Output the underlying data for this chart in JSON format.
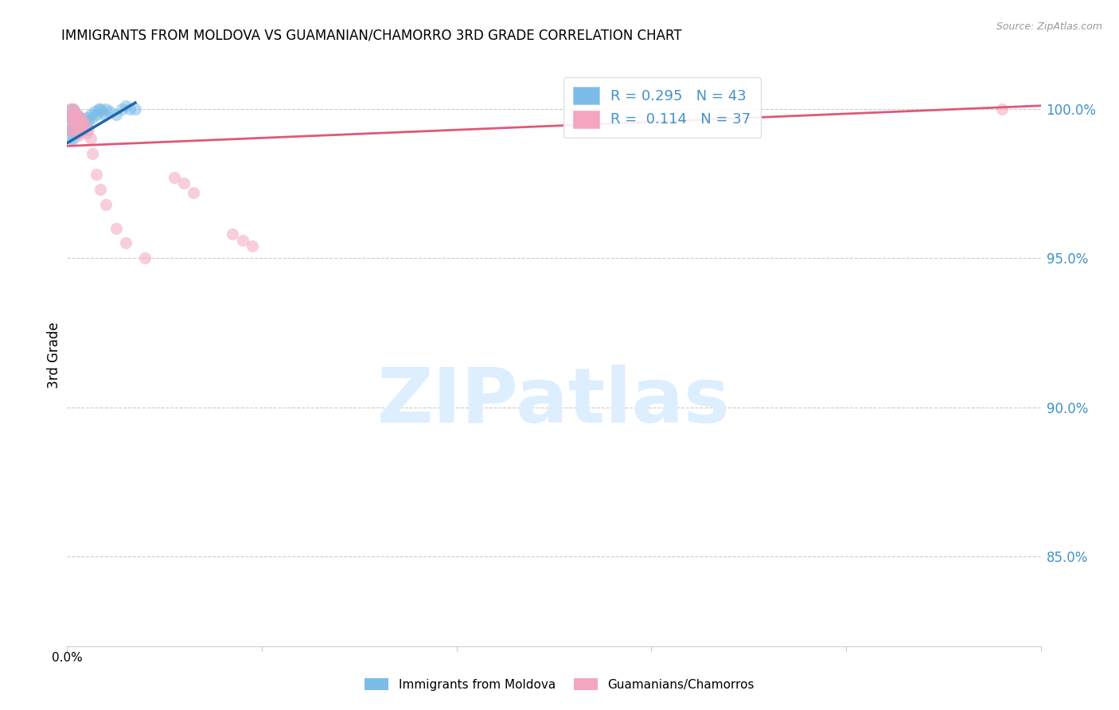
{
  "title": "IMMIGRANTS FROM MOLDOVA VS GUAMANIAN/CHAMORRO 3RD GRADE CORRELATION CHART",
  "source": "Source: ZipAtlas.com",
  "ylabel": "3rd Grade",
  "xlim": [
    0.0,
    0.5
  ],
  "ylim": [
    0.82,
    1.015
  ],
  "ytick_values": [
    0.85,
    0.9,
    0.95,
    1.0
  ],
  "ytick_labels": [
    "85.0%",
    "90.0%",
    "95.0%",
    "100.0%"
  ],
  "legend_line1": "R = 0.295   N = 43",
  "legend_line2": "R =  0.114   N = 37",
  "color_blue": "#7bbde8",
  "color_blue_line": "#2166ac",
  "color_pink": "#f4a6c0",
  "color_pink_line": "#e05878",
  "color_axis_labels": "#4292c6",
  "watermark_text": "ZIPatlas",
  "watermark_color": "#ddeeff",
  "moldova_x": [
    0.001,
    0.001,
    0.002,
    0.002,
    0.002,
    0.002,
    0.003,
    0.003,
    0.003,
    0.003,
    0.003,
    0.004,
    0.004,
    0.004,
    0.005,
    0.005,
    0.005,
    0.006,
    0.006,
    0.006,
    0.007,
    0.007,
    0.008,
    0.008,
    0.009,
    0.01,
    0.01,
    0.011,
    0.012,
    0.013,
    0.014,
    0.015,
    0.016,
    0.017,
    0.018,
    0.019,
    0.02,
    0.022,
    0.025,
    0.028,
    0.03,
    0.032,
    0.035
  ],
  "moldova_y": [
    0.997,
    0.993,
    1.0,
    0.997,
    0.993,
    0.99,
    1.0,
    0.998,
    0.996,
    0.993,
    0.99,
    0.998,
    0.995,
    0.992,
    0.998,
    0.996,
    0.993,
    0.997,
    0.994,
    0.992,
    0.997,
    0.994,
    0.996,
    0.993,
    0.995,
    0.997,
    0.994,
    0.996,
    0.998,
    0.997,
    0.999,
    0.998,
    1.0,
    1.0,
    0.999,
    0.998,
    1.0,
    0.999,
    0.998,
    1.0,
    1.001,
    1.0,
    1.0
  ],
  "guam_x": [
    0.001,
    0.001,
    0.002,
    0.002,
    0.002,
    0.003,
    0.003,
    0.004,
    0.004,
    0.005,
    0.005,
    0.005,
    0.006,
    0.006,
    0.006,
    0.007,
    0.007,
    0.008,
    0.008,
    0.009,
    0.01,
    0.011,
    0.012,
    0.013,
    0.015,
    0.017,
    0.02,
    0.025,
    0.03,
    0.04,
    0.055,
    0.06,
    0.065,
    0.085,
    0.09,
    0.095,
    0.48
  ],
  "guam_y": [
    0.997,
    0.993,
    1.0,
    0.997,
    0.993,
    1.0,
    0.997,
    0.999,
    0.996,
    0.998,
    0.995,
    0.992,
    0.997,
    0.994,
    0.991,
    0.997,
    0.994,
    0.996,
    0.993,
    0.995,
    0.992,
    0.993,
    0.99,
    0.985,
    0.978,
    0.973,
    0.968,
    0.96,
    0.955,
    0.95,
    0.977,
    0.975,
    0.972,
    0.958,
    0.956,
    0.954,
    1.0
  ],
  "mol_line_x0": 0.0,
  "mol_line_x1": 0.035,
  "mol_line_y0": 0.9885,
  "mol_line_y1": 1.002,
  "guam_line_x0": 0.0,
  "guam_line_x1": 0.5,
  "guam_line_y0": 0.9875,
  "guam_line_y1": 1.001
}
